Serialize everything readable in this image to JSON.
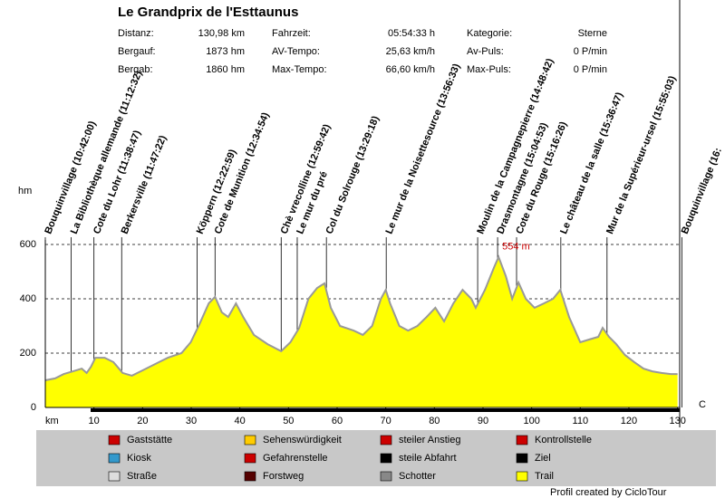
{
  "chart_data": {
    "type": "area",
    "title": "Le Grandprix de l'Esttaunus",
    "stats": [
      [
        "Distanz:",
        "130,98 km",
        "Fahrzeit:",
        "05:54:33 h",
        "Kategorie:",
        "Sterne"
      ],
      [
        "Bergauf:",
        "1873 hm",
        "AV-Tempo:",
        "25,63 km/h",
        "Av-Puls:",
        "0 P/min"
      ],
      [
        "Bergab:",
        "1860 hm",
        "Max-Tempo:",
        "66,60 km/h",
        "Max-Puls:",
        "0 P/min"
      ]
    ],
    "ylabel": "hm",
    "xlabel": "km",
    "right_label": "C",
    "annotation": "554 m",
    "color": "#ffff00",
    "x": [
      0,
      2,
      3.8,
      5.7,
      7.5,
      8.5,
      9.4,
      10.3,
      12.2,
      14,
      15.9,
      17.8,
      19.6,
      21.5,
      23.4,
      25.2,
      28,
      29.9,
      31.7,
      33.6,
      34.9,
      36.3,
      37.6,
      39.2,
      40.7,
      42.9,
      45.7,
      48.5,
      50.4,
      52.2,
      54.1,
      55.9,
      57.4,
      58.7,
      60.6,
      63.4,
      65.3,
      67.2,
      69,
      70,
      70.9,
      72.8,
      74.6,
      76.5,
      78.4,
      80.2,
      82,
      83.9,
      85.8,
      87.6,
      88.5,
      90.4,
      92.3,
      93.2,
      94.7,
      96,
      97.3,
      98.8,
      100.6,
      102.5,
      104.4,
      105.9,
      107.7,
      110,
      111.8,
      113.7,
      114.6,
      115.9,
      117.4,
      119.2,
      121.1,
      123,
      124.8,
      126.7,
      128.6,
      130
    ],
    "values": [
      100,
      107,
      123,
      133,
      143,
      127,
      150,
      183,
      183,
      167,
      127,
      117,
      133,
      150,
      167,
      183,
      200,
      240,
      307,
      383,
      407,
      350,
      333,
      383,
      333,
      267,
      233,
      207,
      240,
      293,
      400,
      440,
      457,
      367,
      300,
      283,
      267,
      300,
      400,
      433,
      383,
      300,
      283,
      300,
      333,
      367,
      317,
      383,
      433,
      400,
      367,
      433,
      517,
      554,
      483,
      400,
      460,
      400,
      367,
      383,
      400,
      433,
      333,
      240,
      250,
      260,
      293,
      260,
      233,
      193,
      167,
      143,
      133,
      127,
      123,
      123
    ],
    "xlim": [
      0,
      131
    ],
    "ylim": [
      0,
      600
    ],
    "xticks": [
      10,
      20,
      30,
      40,
      50,
      60,
      70,
      80,
      90,
      100,
      110,
      120,
      130
    ],
    "yticks": [
      0,
      200,
      400,
      600
    ],
    "grid": true,
    "waypoints": [
      {
        "label": "Bouquinvillage (10:42:00)",
        "km": 0
      },
      {
        "label": "La Bibliothèque allemande (11:12:32)",
        "km": 5.3
      },
      {
        "label": "Cote du Lohr (11:38:47)",
        "km": 10
      },
      {
        "label": "Berkersville (11:47:22)",
        "km": 15.7
      },
      {
        "label": "Köppern (12:22:59)",
        "km": 31.2
      },
      {
        "label": "Cote de Munition (12:34:54)",
        "km": 34.9
      },
      {
        "label": "Chè vrecolline (12:59:42)",
        "km": 48.5
      },
      {
        "label": "Le mur du pré",
        "km": 51.8
      },
      {
        "label": "Col du Solrouge (13:29:18)",
        "km": 57.8
      },
      {
        "label": "Le mur de la Noisettesource (13:56:33)",
        "km": 70.1
      },
      {
        "label": "Moulin de la Campagnepierre (14:48:42)",
        "km": 88.9
      },
      {
        "label": "Drasmontagne (15:04:53)",
        "km": 93
      },
      {
        "label": "Cote du Rouge (15:16:26)",
        "km": 96.9
      },
      {
        "label": "Le château de la salle (15:36:47)",
        "km": 106
      },
      {
        "label": "Mur de la Supérieur-ursel (15:55:03)",
        "km": 115.5
      },
      {
        "label": "Bouquinvillage (16:",
        "km": 130.9
      }
    ],
    "legend": [
      "Gaststätte",
      "Kiosk",
      "Straße",
      "Sehenswürdigkeit",
      "Gefahrenstelle",
      "Forstweg",
      "steiler Anstieg",
      "steile Abfahrt",
      "Schotter",
      "Kontrollstelle",
      "Ziel",
      "Trail"
    ],
    "footer": "Profil created by CicloTour"
  }
}
